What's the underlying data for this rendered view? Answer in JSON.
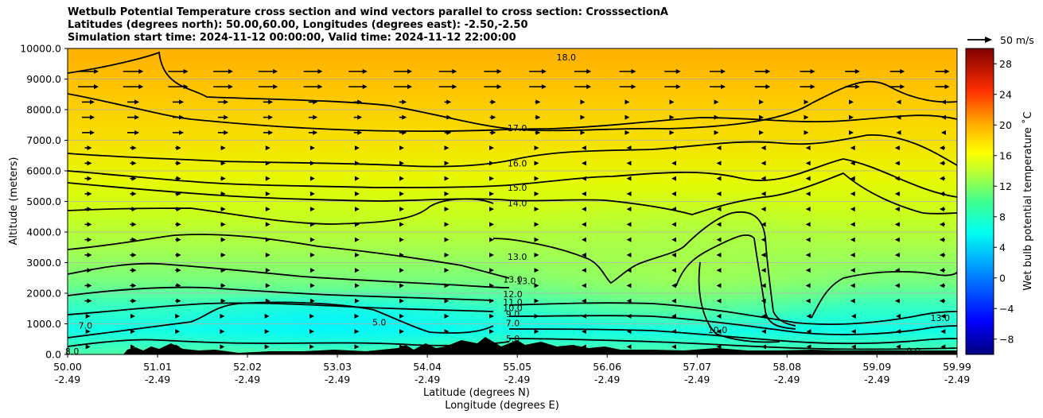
{
  "title": {
    "line1": "Wetbulb Potential Temperature cross section and wind vectors parallel to cross section: CrosssectionA",
    "line2": "Latitudes (degrees north): 50.00,60.00, Longitudes (degrees east): -2.50,-2.50",
    "line3": "Simulation start time: 2024-11-12 00:00:00, Valid time: 2024-11-12 22:00:00"
  },
  "quiver_key_label": "50 m/s",
  "chart_data": {
    "type": "heatmap",
    "ylabel": "Altitude (meters)",
    "xlabel_lat": "Latitude (degrees N)",
    "xlabel_lon": "Longitude (degrees E)",
    "colorbar_label": "Wet bulb potential temperature ˚C",
    "ylim": [
      0,
      10000
    ],
    "xlim": [
      50.0,
      59.99
    ],
    "colorbar_range": [
      -10,
      30
    ],
    "yticks": [
      "0.0",
      "1000.0",
      "2000.0",
      "3000.0",
      "4000.0",
      "5000.0",
      "6000.0",
      "7000.0",
      "8000.0",
      "9000.0",
      "10000.0"
    ],
    "xticks": [
      {
        "lat": "50.00",
        "lon": "-2.49"
      },
      {
        "lat": "51.01",
        "lon": "-2.49"
      },
      {
        "lat": "52.02",
        "lon": "-2.49"
      },
      {
        "lat": "53.03",
        "lon": "-2.49"
      },
      {
        "lat": "54.04",
        "lon": "-2.49"
      },
      {
        "lat": "55.05",
        "lon": "-2.49"
      },
      {
        "lat": "56.06",
        "lon": "-2.49"
      },
      {
        "lat": "57.07",
        "lon": "-2.49"
      },
      {
        "lat": "58.08",
        "lon": "-2.49"
      },
      {
        "lat": "59.09",
        "lon": "-2.49"
      },
      {
        "lat": "59.99",
        "lon": "-2.49"
      }
    ],
    "colorbar_ticks": [
      "−8",
      "−4",
      "0",
      "4",
      "8",
      "12",
      "16",
      "20",
      "24",
      "28"
    ],
    "colorbar_tick_values": [
      -8,
      -4,
      0,
      4,
      8,
      12,
      16,
      20,
      24,
      28
    ],
    "grid": true,
    "contour_labels": [
      {
        "text": "18.0",
        "lat": 55.6,
        "alt": 9720
      },
      {
        "text": "17.0",
        "lat": 55.05,
        "alt": 7400
      },
      {
        "text": "16.0",
        "lat": 55.05,
        "alt": 6250
      },
      {
        "text": "15.0",
        "lat": 55.05,
        "alt": 5450
      },
      {
        "text": "14.0",
        "lat": 55.05,
        "alt": 4950
      },
      {
        "text": "13.0",
        "lat": 55.05,
        "alt": 3200
      },
      {
        "text": "13.0",
        "lat": 55.0,
        "alt": 2450
      },
      {
        "text": "13.0",
        "lat": 55.15,
        "alt": 2400
      },
      {
        "text": "12.0",
        "lat": 55.0,
        "alt": 1980
      },
      {
        "text": "11.0",
        "lat": 55.0,
        "alt": 1720
      },
      {
        "text": "10.0",
        "lat": 55.0,
        "alt": 1520
      },
      {
        "text": "9.0",
        "lat": 55.0,
        "alt": 1330
      },
      {
        "text": "7.0",
        "lat": 55.0,
        "alt": 1020
      },
      {
        "text": "5.0",
        "lat": 53.5,
        "alt": 1050
      },
      {
        "text": "5.0",
        "lat": 55.0,
        "alt": 520
      },
      {
        "text": "7.0",
        "lat": 50.2,
        "alt": 950
      },
      {
        "text": "10.0",
        "lat": 57.3,
        "alt": 800
      },
      {
        "text": "13.0",
        "lat": 59.8,
        "alt": 1200
      },
      {
        "text": "9.0",
        "lat": 59.5,
        "alt": 120
      },
      {
        "text": "8.0",
        "lat": 50.05,
        "alt": 100
      }
    ]
  }
}
